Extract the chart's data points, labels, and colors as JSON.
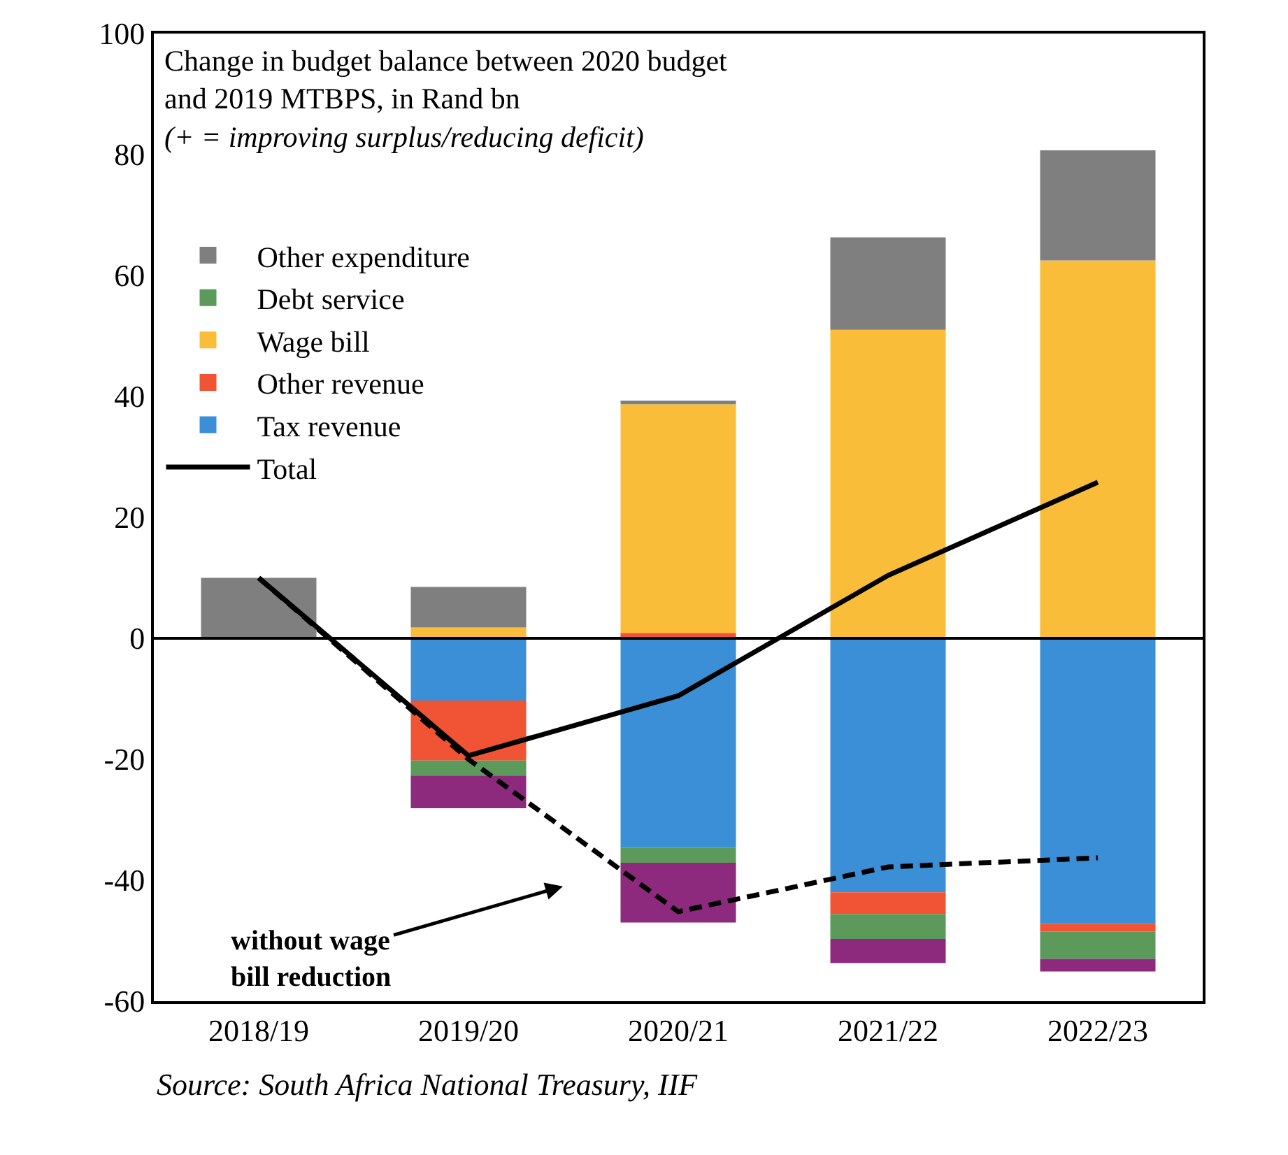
{
  "chart_data": {
    "type": "bar",
    "stacked": true,
    "title": "Change in budget balance between 2020 budget\nand 2019 MTBPS, in Rand bn",
    "subtitle": "(+ = improving surplus/reducing deficit)",
    "categories": [
      "2018/19",
      "2019/20",
      "2020/21",
      "2021/22",
      "2022/23"
    ],
    "series": [
      {
        "name": "Tax revenue",
        "color": "#3a8fd6",
        "values": [
          null,
          -10.3,
          -34.6,
          -42.0,
          -47.2
        ]
      },
      {
        "name": "Other revenue",
        "color": "#f05434",
        "values": [
          null,
          -9.9,
          0.9,
          -3.6,
          -1.3
        ]
      },
      {
        "name": "Wage bill",
        "color": "#f9bd3a",
        "values": [
          null,
          1.8,
          37.8,
          51.0,
          62.5
        ]
      },
      {
        "name": "Debt service",
        "color": "#5b9a5b",
        "values": [
          null,
          -2.5,
          -2.5,
          -4.1,
          -4.5
        ]
      },
      {
        "color": "#8e2a7e",
        "values": [
          null,
          -5.4,
          -9.9,
          -4.0,
          -2.1
        ]
      },
      {
        "name": "Other expenditure",
        "color": "#7f7f7f",
        "values": [
          10.0,
          6.7,
          0.6,
          15.3,
          18.2
        ]
      },
      {
        "name": "Total",
        "type": "line",
        "color": "#000000",
        "line_style": "solid",
        "values": [
          10.0,
          -19.4,
          -9.5,
          10.4,
          25.8
        ]
      },
      {
        "type": "line",
        "color": "#000000",
        "line_style": "dashed",
        "values": [
          10.0,
          -20.0,
          -45.2,
          -37.8,
          -36.3
        ]
      }
    ],
    "ylim": [
      -60,
      100
    ],
    "yticks": [
      -60,
      -40,
      -20,
      0,
      20,
      40,
      60,
      80,
      100
    ],
    "grid": false,
    "legend": "top left",
    "ref_lines": [
      {
        "axis": "y",
        "value": 0,
        "color": "#000000"
      }
    ],
    "annotations": [
      "without wage\nbill reduction",
      "Source: South Africa National Treasury, IIF"
    ]
  }
}
